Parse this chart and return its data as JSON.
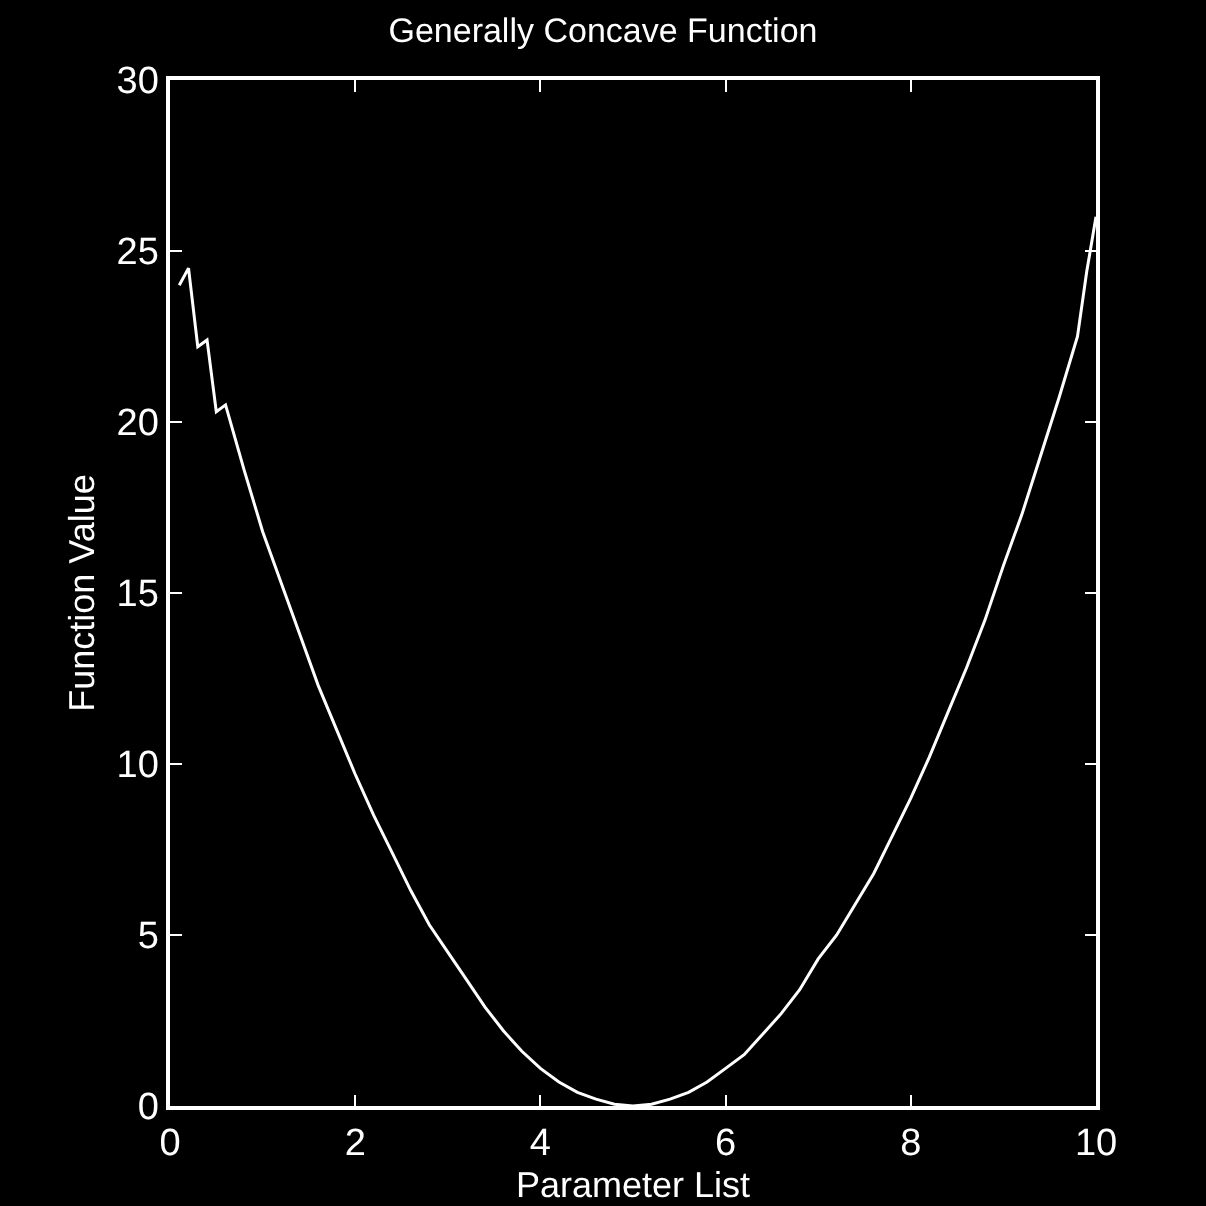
{
  "chart_data": {
    "type": "line",
    "title": "Generally Concave Function",
    "xlabel": "Parameter List",
    "ylabel": "Function Value",
    "xlim": [
      0,
      10
    ],
    "xticks": [
      0,
      2,
      4,
      6,
      8,
      10
    ],
    "ylim": [
      0,
      30
    ],
    "yticks": [
      0,
      5,
      10,
      15,
      20,
      25,
      30
    ],
    "grid": false,
    "series": [
      {
        "color": "#ffffff",
        "x": [
          0.1,
          0.2,
          0.3,
          0.4,
          0.5,
          0.6,
          0.8,
          1.0,
          1.2,
          1.4,
          1.6,
          1.8,
          2.0,
          2.2,
          2.4,
          2.6,
          2.8,
          3.0,
          3.2,
          3.4,
          3.6,
          3.8,
          4.0,
          4.2,
          4.4,
          4.6,
          4.8,
          5.0,
          5.2,
          5.4,
          5.6,
          5.8,
          6.0,
          6.2,
          6.4,
          6.6,
          6.8,
          7.0,
          7.2,
          7.4,
          7.6,
          7.8,
          8.0,
          8.2,
          8.4,
          8.6,
          8.8,
          9.0,
          9.2,
          9.4,
          9.6,
          9.8,
          9.9,
          10.0
        ],
        "values": [
          24.0,
          24.5,
          22.2,
          22.4,
          20.3,
          20.5,
          18.6,
          16.8,
          15.3,
          13.8,
          12.3,
          11.0,
          9.7,
          8.5,
          7.4,
          6.3,
          5.3,
          4.5,
          3.7,
          2.9,
          2.2,
          1.6,
          1.1,
          0.7,
          0.4,
          0.2,
          0.05,
          0,
          0.05,
          0.2,
          0.4,
          0.7,
          1.1,
          1.5,
          2.1,
          2.7,
          3.4,
          4.3,
          5.0,
          5.9,
          6.8,
          7.9,
          9.0,
          10.2,
          11.5,
          12.8,
          14.2,
          15.8,
          17.3,
          19.0,
          20.7,
          22.5,
          24.4,
          26.0
        ]
      }
    ]
  }
}
